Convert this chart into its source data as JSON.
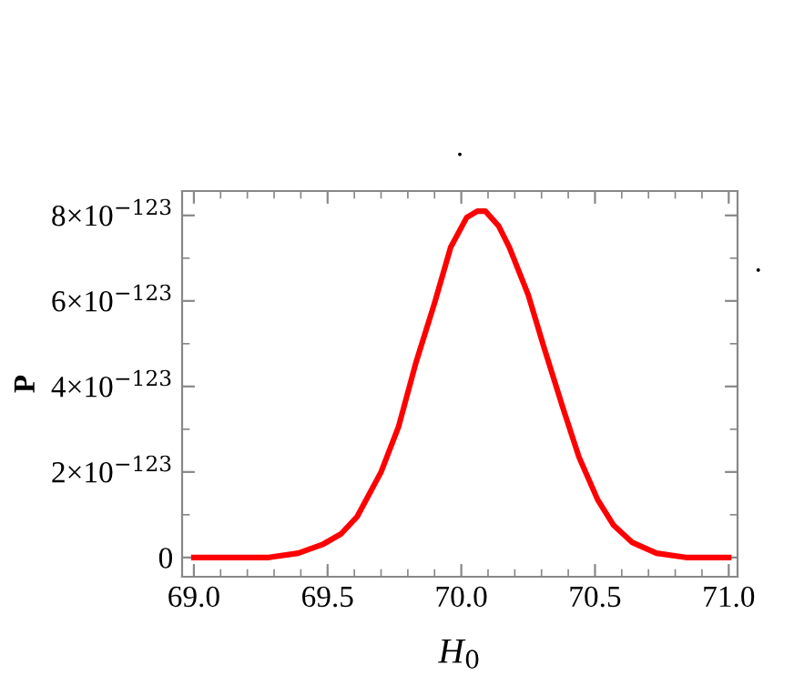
{
  "chart_data": {
    "type": "line",
    "title": ".",
    "xlabel": "H$_{0}$",
    "ylabel": "P",
    "annotations": [
      "."
    ],
    "x": [
      69.0,
      69.28,
      69.39,
      69.48,
      69.55,
      69.61,
      69.7,
      69.765,
      69.83,
      69.9,
      69.96,
      70.02,
      70.06,
      70.09,
      70.14,
      70.18,
      70.25,
      70.31,
      70.38,
      70.44,
      70.51,
      70.57,
      70.64,
      70.73,
      70.84,
      71.0
    ],
    "series": [
      {
        "color": "#ff0000",
        "values": [
          0,
          0,
          1e-124,
          3e-124,
          5.5e-124,
          9.5e-124,
          2e-123,
          3.05e-123,
          4.55e-123,
          5.95e-123,
          7.25e-123,
          7.95e-123,
          8.1e-123,
          8.1e-123,
          7.75e-123,
          7.25e-123,
          6.15e-123,
          4.9e-123,
          3.5e-123,
          2.35e-123,
          1.35e-123,
          7.5e-124,
          3.5e-124,
          1e-124,
          0,
          0
        ]
      }
    ],
    "xlim": [
      68.956,
      71.033
    ],
    "ylim": [
      -4.5e-124,
      8.57e-123
    ],
    "xticks": [
      {
        "value": 69.0,
        "label": "69.0"
      },
      69.5,
      {
        "value": 70.0,
        "label": "70.0"
      },
      70.5,
      {
        "value": 71.0,
        "label": "71.0"
      }
    ],
    "yticks": [
      0,
      {
        "value": 2e-123,
        "label": "2×10$^{−123}$"
      },
      {
        "value": 4e-123,
        "label": "4×10$^{−123}$"
      },
      {
        "value": 6e-123,
        "label": "6×10$^{−123}$"
      },
      {
        "value": 8e-123,
        "label": "8×10$^{−123}$"
      }
    ],
    "grid": false,
    "marker": "none",
    "line_style": "solid"
  }
}
